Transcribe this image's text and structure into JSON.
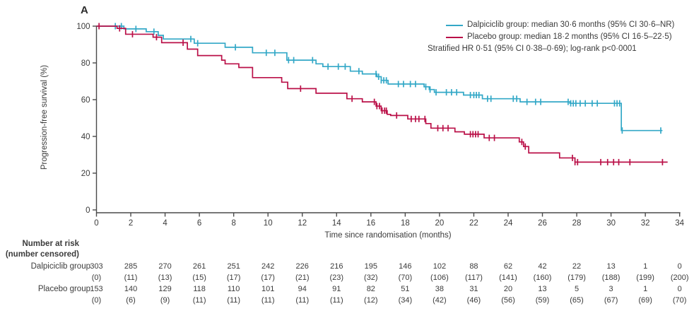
{
  "panel_label": "A",
  "colors": {
    "dalpiciclib": "#33a8c7",
    "placebo": "#ba1048",
    "text": "#3b3b3b",
    "axis": "#4a4a4a"
  },
  "legend": {
    "entries": [
      {
        "name": "dalpiciclib",
        "label": "Dalpiciclib group: median 30·6 months (95% CI 30·6–NR)",
        "color": "#33a8c7"
      },
      {
        "name": "placebo",
        "label": "Placebo group: median 18·2 months (95% CI 16·5–22·5)",
        "color": "#ba1048"
      }
    ],
    "note": "Stratified HR 0·51 (95% CI 0·38–0·69); log-rank p<0·0001"
  },
  "chart_data": {
    "type": "line",
    "subtype": "kaplan-meier-step",
    "title": "",
    "xlabel": "Time since randomisation (months)",
    "ylabel": "Progression-free survival (%)",
    "xlim": [
      0,
      34
    ],
    "ylim": [
      0,
      100
    ],
    "xticks": [
      0,
      2,
      4,
      6,
      8,
      10,
      12,
      14,
      16,
      18,
      20,
      22,
      24,
      26,
      28,
      30,
      32,
      34
    ],
    "yticks": [
      0,
      20,
      40,
      60,
      80,
      100
    ],
    "grid": false,
    "legend_position": "top-right",
    "series": [
      {
        "name": "Dalpiciclib group",
        "color": "#33a8c7",
        "steps": [
          [
            0,
            100
          ],
          [
            1.6,
            98.5
          ],
          [
            2.9,
            97
          ],
          [
            3.6,
            95
          ],
          [
            3.9,
            93
          ],
          [
            5.7,
            90.7
          ],
          [
            7.5,
            88.5
          ],
          [
            9.1,
            85.5
          ],
          [
            11.1,
            81.5
          ],
          [
            12.8,
            79.5
          ],
          [
            13.2,
            78
          ],
          [
            14.8,
            75.5
          ],
          [
            15.5,
            74
          ],
          [
            16.35,
            72.5
          ],
          [
            16.6,
            70.5
          ],
          [
            17.0,
            68.5
          ],
          [
            19.1,
            67
          ],
          [
            19.4,
            65.5
          ],
          [
            19.7,
            64
          ],
          [
            21.4,
            62.5
          ],
          [
            22.5,
            60.5
          ],
          [
            24.7,
            58.8
          ],
          [
            27.6,
            58
          ],
          [
            30.6,
            43.2
          ]
        ],
        "end_month": 33.0,
        "censor_months": [
          1.1,
          1.45,
          2.3,
          3.35,
          5.5,
          5.9,
          8.1,
          9.9,
          10.4,
          11.2,
          11.5,
          12.6,
          13.5,
          14.1,
          14.5,
          15.3,
          16.3,
          16.45,
          16.6,
          16.75,
          16.9,
          17.6,
          17.9,
          18.3,
          18.6,
          19.2,
          19.45,
          19.8,
          20.4,
          20.7,
          21.0,
          21.8,
          22.0,
          22.15,
          22.3,
          22.8,
          23.0,
          24.3,
          24.5,
          25.1,
          25.6,
          25.9,
          27.5,
          27.65,
          27.8,
          27.95,
          28.2,
          28.5,
          28.9,
          29.2,
          30.2,
          30.35,
          30.5,
          30.65,
          32.9
        ]
      },
      {
        "name": "Placebo group",
        "color": "#ba1048",
        "steps": [
          [
            0,
            100
          ],
          [
            1.2,
            98.8
          ],
          [
            1.7,
            95.6
          ],
          [
            3.3,
            94
          ],
          [
            3.8,
            91
          ],
          [
            5.3,
            87.5
          ],
          [
            5.9,
            84
          ],
          [
            7.3,
            81.5
          ],
          [
            7.5,
            79.5
          ],
          [
            8.3,
            77.5
          ],
          [
            9.1,
            72
          ],
          [
            10.8,
            69.5
          ],
          [
            11.15,
            66
          ],
          [
            12.8,
            63.5
          ],
          [
            14.6,
            60.5
          ],
          [
            15.5,
            58.8
          ],
          [
            16.3,
            56.5
          ],
          [
            16.6,
            54
          ],
          [
            16.95,
            52
          ],
          [
            17.15,
            51.4
          ],
          [
            18.15,
            49.5
          ],
          [
            19.2,
            47
          ],
          [
            19.5,
            44.5
          ],
          [
            20.9,
            42.5
          ],
          [
            21.45,
            41.2
          ],
          [
            22.6,
            39.2
          ],
          [
            24.65,
            37
          ],
          [
            24.9,
            34.5
          ],
          [
            25.2,
            31
          ],
          [
            27.0,
            28.3
          ],
          [
            27.9,
            26
          ]
        ],
        "end_month": 33.3,
        "censor_months": [
          0.15,
          1.35,
          2.1,
          3.5,
          5.05,
          11.9,
          14.9,
          16.2,
          16.35,
          16.5,
          16.65,
          16.8,
          16.9,
          17.5,
          18.35,
          18.6,
          18.8,
          19.15,
          19.9,
          20.2,
          20.5,
          21.8,
          21.95,
          22.1,
          22.25,
          22.9,
          23.2,
          24.8,
          25.0,
          27.75,
          27.9,
          28.05,
          29.4,
          29.8,
          30.15,
          30.45,
          31.1,
          33.0
        ]
      }
    ]
  },
  "risk_table": {
    "title": "Number at risk",
    "subtitle": "(number censored)",
    "columns_months": [
      0,
      2,
      4,
      6,
      8,
      10,
      12,
      14,
      16,
      18,
      20,
      22,
      24,
      26,
      28,
      30,
      32,
      34
    ],
    "rows": [
      {
        "label": "Dalpiciclib group",
        "at_risk": [
          "303",
          "285",
          "270",
          "261",
          "251",
          "242",
          "226",
          "216",
          "195",
          "146",
          "102",
          "88",
          "62",
          "42",
          "22",
          "13",
          "1",
          "0"
        ],
        "censored": [
          "(0)",
          "(11)",
          "(13)",
          "(15)",
          "(17)",
          "(17)",
          "(21)",
          "(23)",
          "(32)",
          "(70)",
          "(106)",
          "(117)",
          "(141)",
          "(160)",
          "(179)",
          "(188)",
          "(199)",
          "(200)"
        ]
      },
      {
        "label": "Placebo group",
        "at_risk": [
          "153",
          "140",
          "129",
          "118",
          "110",
          "101",
          "94",
          "91",
          "82",
          "51",
          "38",
          "31",
          "20",
          "13",
          "5",
          "3",
          "1",
          "0"
        ],
        "censored": [
          "(0)",
          "(6)",
          "(9)",
          "(11)",
          "(11)",
          "(11)",
          "(11)",
          "(11)",
          "(12)",
          "(34)",
          "(42)",
          "(46)",
          "(56)",
          "(59)",
          "(65)",
          "(67)",
          "(69)",
          "(70)"
        ]
      }
    ]
  }
}
